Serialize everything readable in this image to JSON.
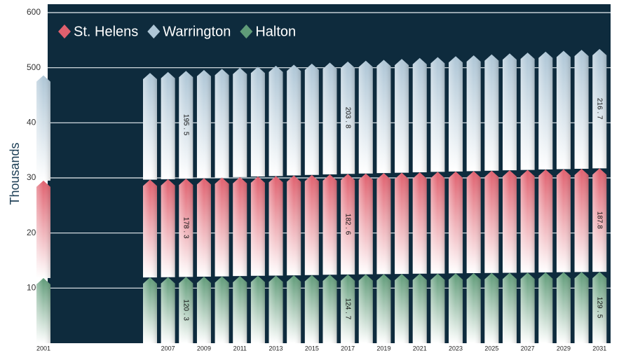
{
  "chart_data": {
    "type": "stacked_bar",
    "y_label": "Thousands",
    "categories": [
      "2001",
      null,
      "2007",
      null,
      "2009",
      null,
      "2011",
      null,
      "2013",
      null,
      "2015",
      null,
      "2017",
      null,
      "2019",
      null,
      "2021",
      null,
      "2023",
      null,
      "2025",
      null,
      "2027",
      null,
      "2029",
      null,
      "2031"
    ],
    "series": [
      {
        "name": "Halton",
        "color": "#5f9b78",
        "values": [
          118.2,
          119.4,
          119.8,
          120.3,
          120.8,
          121.3,
          121.8,
          122.3,
          122.7,
          123.2,
          123.7,
          124.2,
          124.7,
          125.0,
          125.4,
          125.7,
          126.1,
          126.4,
          126.8,
          127.1,
          127.4,
          127.8,
          128.1,
          128.5,
          128.8,
          129.2,
          129.5
        ],
        "value_labels": [
          null,
          null,
          null,
          "120 . 3",
          null,
          null,
          null,
          null,
          null,
          null,
          null,
          null,
          "124 . 7",
          null,
          null,
          null,
          null,
          null,
          null,
          null,
          null,
          null,
          null,
          null,
          null,
          null,
          "129 . 5"
        ]
      },
      {
        "name": "St. Helens",
        "color": "#e0606e",
        "values": [
          176.8,
          177.4,
          177.8,
          178.3,
          178.8,
          179.3,
          179.7,
          180.2,
          180.7,
          181.2,
          181.7,
          182.1,
          182.6,
          183.0,
          183.3,
          183.7,
          184.1,
          184.5,
          184.8,
          185.2,
          185.6,
          186.0,
          186.3,
          186.7,
          187.1,
          187.4,
          187.8
        ],
        "value_labels": [
          null,
          null,
          null,
          "178 . 3",
          null,
          null,
          null,
          null,
          null,
          null,
          null,
          null,
          "182 . 6",
          null,
          null,
          null,
          null,
          null,
          null,
          null,
          null,
          null,
          null,
          null,
          null,
          null,
          "187.8"
        ]
      },
      {
        "name": "Warrington",
        "color": "#aec6d6",
        "values": [
          191.1,
          193.7,
          194.6,
          195.5,
          196.4,
          197.3,
          198.3,
          199.2,
          200.1,
          201.0,
          201.9,
          202.9,
          203.8,
          204.7,
          205.6,
          206.6,
          207.5,
          208.4,
          209.3,
          210.2,
          211.2,
          212.1,
          213.0,
          213.9,
          214.8,
          215.8,
          216.7
        ],
        "value_labels": [
          null,
          null,
          null,
          "195 . 5",
          null,
          null,
          null,
          null,
          null,
          null,
          null,
          null,
          "203 . 8",
          null,
          null,
          null,
          null,
          null,
          null,
          null,
          null,
          null,
          null,
          null,
          null,
          null,
          "216 . 7"
        ]
      }
    ],
    "legend_order": [
      "St. Helens",
      "Warrington",
      "Halton"
    ],
    "ylim": [
      0,
      600
    ],
    "yticks": [
      100,
      200,
      300,
      400,
      500,
      600
    ],
    "grid": true,
    "legend": "top-left"
  }
}
